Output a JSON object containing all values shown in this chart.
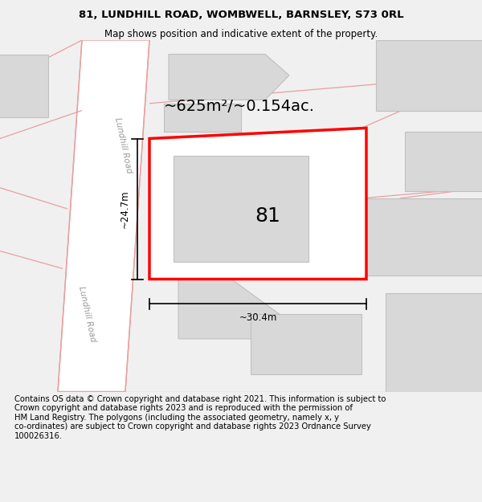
{
  "title": "81, LUNDHILL ROAD, WOMBWELL, BARNSLEY, S73 0RL",
  "subtitle": "Map shows position and indicative extent of the property.",
  "footer": "Contains OS data © Crown copyright and database right 2021. This information is subject to\nCrown copyright and database rights 2023 and is reproduced with the permission of\nHM Land Registry. The polygons (including the associated geometry, namely x, y\nco-ordinates) are subject to Crown copyright and database rights 2023 Ordnance Survey\n100026316.",
  "bg_color": "#f0f0f0",
  "map_bg": "#ffffff",
  "area_text": "~625m²/~0.154ac.",
  "label_81": "81",
  "dim_width": "~30.4m",
  "dim_height": "~24.7m",
  "road_label_upper": "Lundhill Road",
  "road_label_lower": "Lundhill Road",
  "title_fontsize": 9.5,
  "subtitle_fontsize": 8.5,
  "footer_fontsize": 7.2,
  "area_fontsize": 14,
  "label_fontsize": 18,
  "dim_fontsize": 8.5,
  "road_label_fontsize": 7.5
}
